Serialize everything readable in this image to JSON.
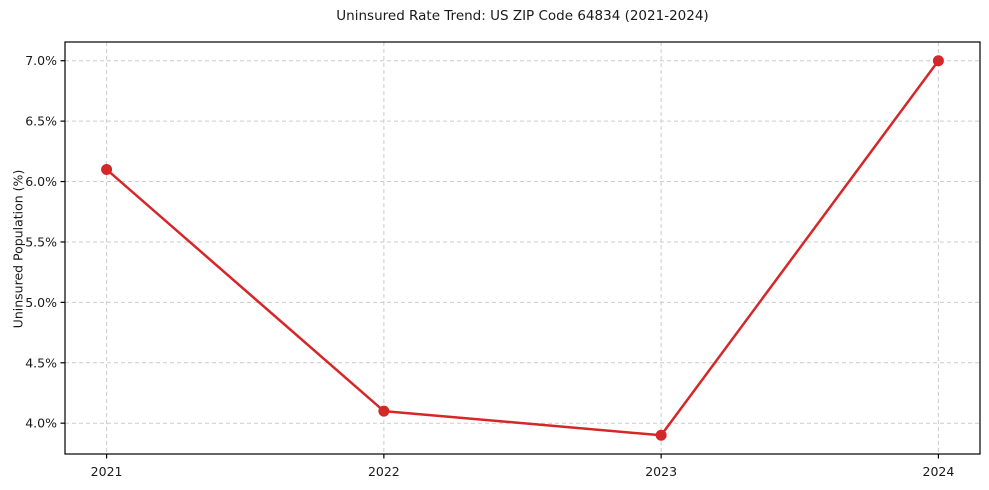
{
  "figure": {
    "background": "#ffffff"
  },
  "chart_data": {
    "type": "line",
    "title": "Uninsured Rate Trend: US ZIP Code 64834 (2021-2024)",
    "xlabel": "",
    "ylabel": "Uninsured Population (%)",
    "x": [
      2021,
      2022,
      2023,
      2024
    ],
    "values": [
      6.1,
      4.1,
      3.9,
      7.0
    ],
    "xticks": {
      "values": [
        2021,
        2022,
        2023,
        2024
      ],
      "labels": [
        "2021",
        "2022",
        "2023",
        "2024"
      ]
    },
    "yticks": {
      "values": [
        4.0,
        4.5,
        5.0,
        5.5,
        6.0,
        6.5,
        7.0
      ],
      "labels": [
        "4.0%",
        "4.5%",
        "5.0%",
        "5.5%",
        "6.0%",
        "6.5%",
        "7.0%"
      ]
    },
    "xlim": [
      2020.85,
      2024.15
    ],
    "ylim": [
      3.745,
      7.155
    ],
    "grid": {
      "show": true,
      "style": "dashed",
      "color": "#cccccc"
    },
    "legend": "none",
    "line_color": "#d62728",
    "marker": "circle",
    "line_width": 2.5,
    "marker_radius": 5.5,
    "spine_color": "#000000",
    "text_color": "#1a1a1a"
  }
}
